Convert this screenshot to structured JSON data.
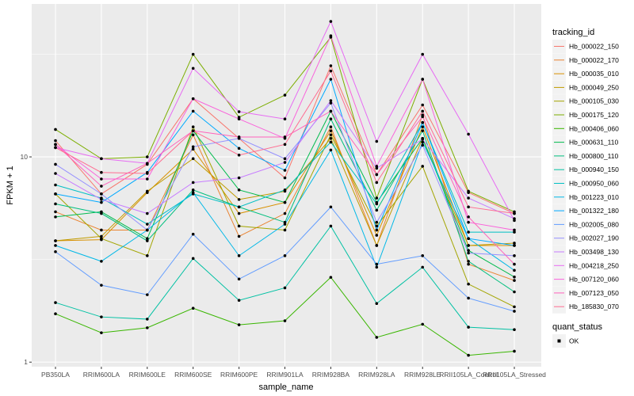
{
  "chart_data": {
    "type": "line",
    "title": "",
    "xlabel": "sample_name",
    "ylabel": "FPKM + 1",
    "yscale": "log10",
    "ylim": [
      0.95,
      55.6
    ],
    "y_ticks": [
      1,
      10
    ],
    "y_tick_labels": [
      "1",
      "10"
    ],
    "grid": true,
    "legend_position": "right",
    "categories": [
      "PB350LA",
      "RRIM600LA",
      "RRIM600LE",
      "RRIM600SE",
      "RRIM600PE",
      "RRIM901LA",
      "RRIM928BA",
      "RRIM928LA",
      "RRIM928LE",
      "RRII105LA_Control",
      "RRII105LA_Stressed"
    ],
    "legend_title": "tracking_id",
    "series": [
      {
        "name": "Hb_000022_150",
        "color": "#F8766D",
        "values": [
          12.0,
          6.6,
          9.2,
          19.2,
          12.3,
          7.9,
          27.8,
          8.2,
          17.9,
          6.7,
          5.3
        ]
      },
      {
        "name": "Hb_000022_170",
        "color": "#EA8331",
        "values": [
          5.4,
          4.4,
          4.4,
          12.8,
          4.1,
          5.3,
          14.0,
          3.7,
          16.0,
          3.0,
          2.5
        ]
      },
      {
        "name": "Hb_000035_010",
        "color": "#D89000",
        "values": [
          3.9,
          3.95,
          6.7,
          10.9,
          5.3,
          6.0,
          13.4,
          4.15,
          14.0,
          3.7,
          3.7
        ]
      },
      {
        "name": "Hb_000049_250",
        "color": "#C09B00",
        "values": [
          3.9,
          4.1,
          6.8,
          9.8,
          6.2,
          6.8,
          12.3,
          3.7,
          12.3,
          3.7,
          3.8
        ]
      },
      {
        "name": "Hb_000105_030",
        "color": "#A3A500",
        "values": [
          6.6,
          4.0,
          3.3,
          14.0,
          4.6,
          4.4,
          12.8,
          4.6,
          9.0,
          2.4,
          1.86
        ]
      },
      {
        "name": "Hb_000175_120",
        "color": "#7CAE00",
        "values": [
          13.6,
          9.8,
          10.0,
          31.6,
          15.6,
          20.0,
          38.3,
          6.3,
          23.9,
          6.8,
          5.4
        ]
      },
      {
        "name": "Hb_000406_060",
        "color": "#39B600",
        "values": [
          1.72,
          1.39,
          1.47,
          1.83,
          1.52,
          1.59,
          2.59,
          1.32,
          1.53,
          1.08,
          1.13
        ]
      },
      {
        "name": "Hb_000631_110",
        "color": "#00BB4E",
        "values": [
          5.1,
          5.4,
          4.0,
          13.4,
          6.9,
          6.0,
          16.7,
          6.0,
          12.3,
          3.5,
          2.6
        ]
      },
      {
        "name": "Hb_000800_110",
        "color": "#00BF7D",
        "values": [
          5.9,
          5.3,
          3.9,
          6.9,
          5.7,
          4.8,
          15.3,
          5.5,
          13.4,
          3.1,
          2.2
        ]
      },
      {
        "name": "Hb_000940_150",
        "color": "#00C1A3",
        "values": [
          1.95,
          1.66,
          1.62,
          3.2,
          2.0,
          2.3,
          4.6,
          1.93,
          2.9,
          1.48,
          1.44
        ]
      },
      {
        "name": "Hb_000950_060",
        "color": "#00BFC4",
        "values": [
          7.3,
          6.3,
          4.7,
          6.6,
          5.7,
          6.9,
          11.8,
          5.9,
          14.7,
          4.3,
          4.3
        ]
      },
      {
        "name": "Hb_001223_010",
        "color": "#00B8E7",
        "values": [
          3.7,
          3.1,
          4.4,
          6.7,
          3.3,
          4.7,
          10.8,
          2.9,
          11.8,
          4.0,
          2.8
        ]
      },
      {
        "name": "Hb_001322_180",
        "color": "#00A9FF",
        "values": [
          6.6,
          6.0,
          8.4,
          16.7,
          11.0,
          8.6,
          23.9,
          4.4,
          14.7,
          4.0,
          3.7
        ]
      },
      {
        "name": "Hb_002005_080",
        "color": "#619CFF",
        "values": [
          3.45,
          2.37,
          2.13,
          4.2,
          2.54,
          3.3,
          5.7,
          3.0,
          3.3,
          2.05,
          1.77
        ]
      },
      {
        "name": "Hb_002027_190",
        "color": "#9590FF",
        "values": [
          9.2,
          6.6,
          4.4,
          11.2,
          12.3,
          9.8,
          18.3,
          4.8,
          11.4,
          3.4,
          3.3
        ]
      },
      {
        "name": "Hb_003498_130",
        "color": "#C77CFF",
        "values": [
          8.3,
          6.2,
          5.3,
          7.5,
          7.9,
          9.4,
          18.8,
          8.8,
          12.2,
          6.3,
          5.0
        ]
      },
      {
        "name": "Hb_004218_250",
        "color": "#E76BF3",
        "values": [
          11.1,
          9.8,
          9.3,
          27.0,
          16.6,
          15.3,
          45.7,
          11.9,
          31.6,
          12.9,
          4.9
        ]
      },
      {
        "name": "Hb_007120_060",
        "color": "#FA62DB",
        "values": [
          11.5,
          7.8,
          7.8,
          19.2,
          15.3,
          12.3,
          38.9,
          9.0,
          23.9,
          4.8,
          4.4
        ]
      },
      {
        "name": "Hb_007123_050",
        "color": "#FF62BC",
        "values": [
          11.5,
          7.2,
          9.3,
          13.4,
          12.5,
          12.5,
          16.7,
          8.2,
          15.7,
          5.1,
          3.0
        ]
      },
      {
        "name": "Hb_185830_070",
        "color": "#FF6C91",
        "values": [
          11.1,
          8.4,
          8.3,
          13.4,
          10.2,
          11.5,
          26.2,
          7.5,
          16.7,
          5.7,
          5.3
        ]
      }
    ],
    "point_legend": {
      "title": "quant_status",
      "entries": [
        "OK"
      ],
      "color": "#000000"
    }
  }
}
